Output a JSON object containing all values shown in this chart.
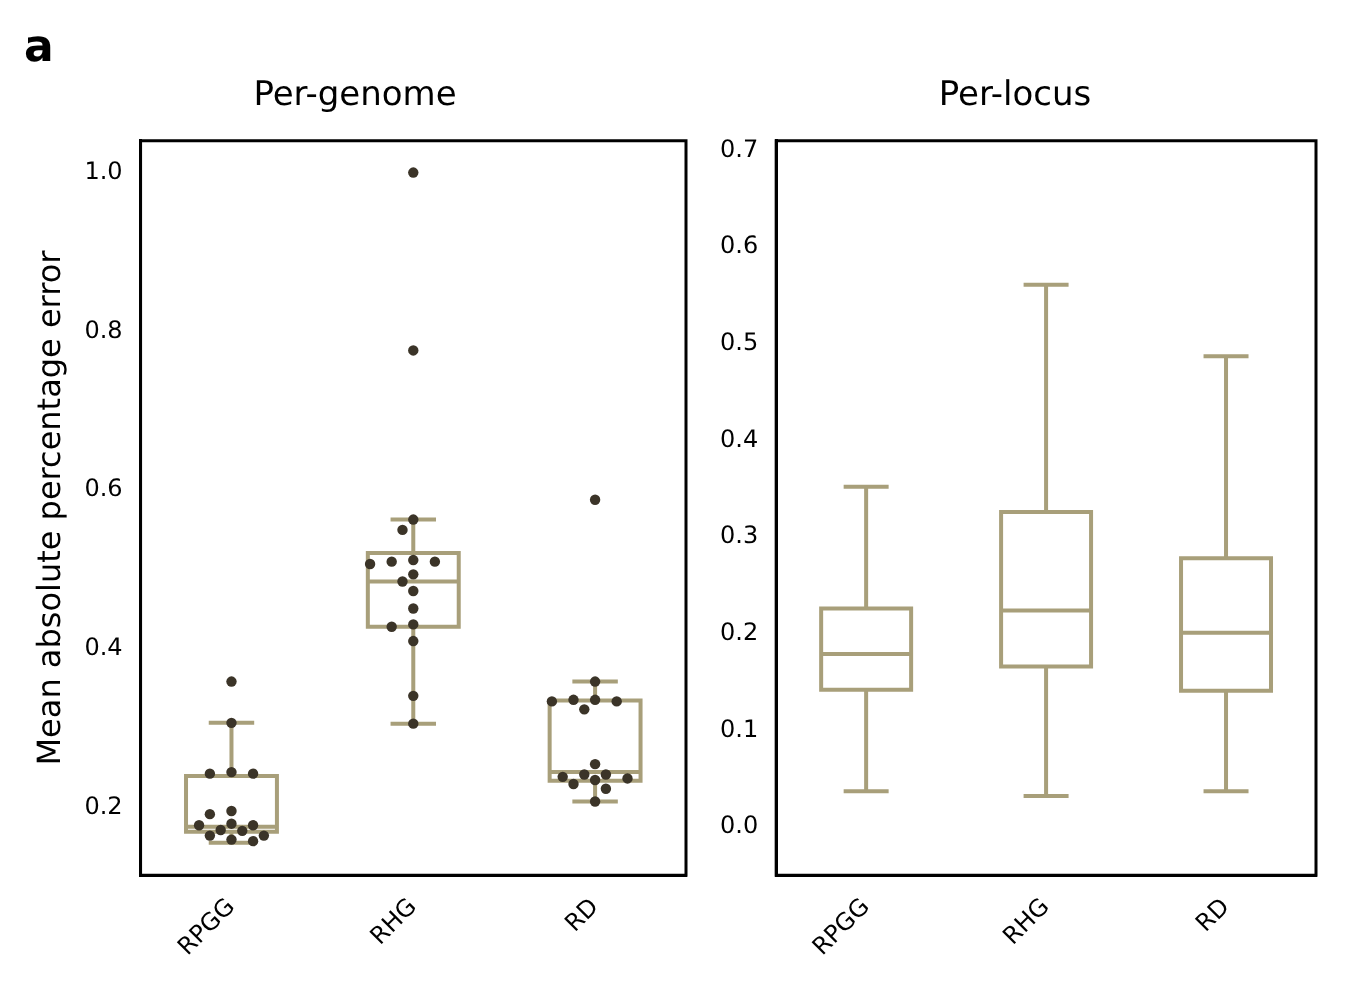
{
  "chart_data": [
    {
      "type": "box",
      "title": "Per-genome",
      "ylabel": "Mean absolute percentage error",
      "annotations": [
        "a"
      ],
      "categories": [
        "RPGG",
        "RHG",
        "RD"
      ],
      "color": "#a89f7a",
      "ylim": [
        0.115,
        1.04
      ],
      "yticks": [
        0.2,
        0.4,
        0.6,
        0.8,
        {
          "value": 1,
          "label": "1.0"
        }
      ],
      "grid": false,
      "legend": false,
      "boxes": [
        {
          "low": 0.156,
          "q1": 0.17,
          "median": 0.176,
          "q3": 0.24,
          "high": 0.307
        },
        {
          "low": 0.306,
          "q1": 0.428,
          "median": 0.485,
          "q3": 0.521,
          "high": 0.563
        },
        {
          "low": 0.208,
          "q1": 0.234,
          "median": 0.245,
          "q3": 0.335,
          "high": 0.359
        }
      ],
      "series": [
        {
          "type": "scatter",
          "color": "#3b3428",
          "marker": "circle",
          "x": [
            "RPGG",
            "RPGG",
            "RPGG",
            "RPGG",
            "RPGG",
            "RPGG",
            "RPGG",
            "RPGG",
            "RPGG",
            "RPGG",
            "RPGG",
            "RPGG",
            "RPGG",
            "RPGG",
            "RPGG",
            "RPGG",
            "RHG",
            "RHG",
            "RHG",
            "RHG",
            "RHG",
            "RHG",
            "RHG",
            "RHG",
            "RHG",
            "RHG",
            "RHG",
            "RHG",
            "RHG",
            "RHG",
            "RHG",
            "RHG",
            "RHG",
            "RD",
            "RD",
            "RD",
            "RD",
            "RD",
            "RD",
            "RD",
            "RD",
            "RD",
            "RD",
            "RD",
            "RD",
            "RD",
            "RD",
            "RD",
            "RD"
          ],
          "values": [
            0.359,
            0.307,
            0.243,
            0.243,
            0.245,
            0.196,
            0.192,
            0.18,
            0.178,
            0.171,
            0.16,
            0.158,
            0.165,
            0.172,
            0.178,
            0.165,
            1.0,
            0.776,
            0.563,
            0.55,
            0.51,
            0.507,
            0.512,
            0.51,
            0.485,
            0.494,
            0.473,
            0.451,
            0.431,
            0.428,
            0.41,
            0.341,
            0.306,
            0.588,
            0.359,
            0.336,
            0.334,
            0.324,
            0.334,
            0.336,
            0.255,
            0.242,
            0.237,
            0.23,
            0.242,
            0.235,
            0.239,
            0.224,
            0.208
          ]
        }
      ]
    },
    {
      "type": "box",
      "title": "Per-locus",
      "categories": [
        "RPGG",
        "RHG",
        "RD"
      ],
      "color": "#a89f7a",
      "ylim": [
        -0.05,
        0.71
      ],
      "yticks": [
        {
          "value": 0,
          "label": "0.0"
        },
        0.1,
        0.2,
        0.3,
        0.4,
        0.5,
        0.6,
        0.7
      ],
      "grid": false,
      "legend": false,
      "boxes": [
        {
          "low": 0.037,
          "q1": 0.142,
          "median": 0.179,
          "q3": 0.226,
          "high": 0.352
        },
        {
          "low": 0.032,
          "q1": 0.166,
          "median": 0.224,
          "q3": 0.326,
          "high": 0.561
        },
        {
          "low": 0.037,
          "q1": 0.141,
          "median": 0.201,
          "q3": 0.278,
          "high": 0.487
        }
      ]
    }
  ]
}
